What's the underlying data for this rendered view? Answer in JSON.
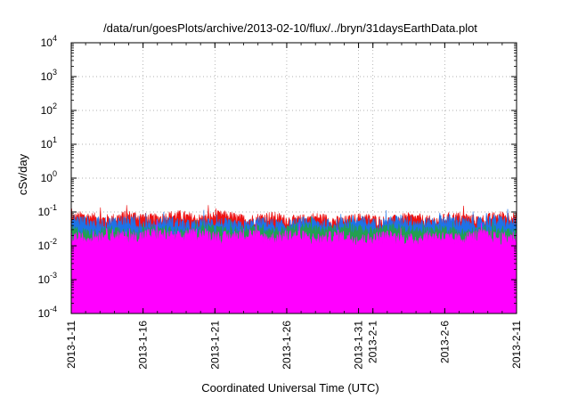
{
  "chart_data": {
    "type": "line",
    "title": "/data/run/goesPlots/archive/2013-02-10/flux/../bryn/31daysEarthData.plot",
    "xlabel": "Coordinated Universal Time (UTC)",
    "ylabel": "cSv/day",
    "y_scale": "log",
    "ylim": [
      0.0001,
      10000
    ],
    "xlim": [
      "2013-01-11",
      "2013-02-11"
    ],
    "grid": true,
    "legend": "none",
    "y_ticks": [
      {
        "base": "10",
        "exp": "-4",
        "value": 0.0001
      },
      {
        "base": "10",
        "exp": "-3",
        "value": 0.001
      },
      {
        "base": "10",
        "exp": "-2",
        "value": 0.01
      },
      {
        "base": "10",
        "exp": "-1",
        "value": 0.1
      },
      {
        "base": "10",
        "exp": "0",
        "value": 1
      },
      {
        "base": "10",
        "exp": "1",
        "value": 10
      },
      {
        "base": "10",
        "exp": "2",
        "value": 100
      },
      {
        "base": "10",
        "exp": "3",
        "value": 1000
      },
      {
        "base": "10",
        "exp": "4",
        "value": 10000
      }
    ],
    "x_ticks": [
      {
        "label": "2013-1-11",
        "date": "2013-01-11"
      },
      {
        "label": "2013-1-16",
        "date": "2013-01-16"
      },
      {
        "label": "2013-1-21",
        "date": "2013-01-21"
      },
      {
        "label": "2013-1-26",
        "date": "2013-01-26"
      },
      {
        "label": "2013-1-31",
        "date": "2013-01-31"
      },
      {
        "label": "2013-2-1",
        "date": "2013-02-01"
      },
      {
        "label": "2013-2-6",
        "date": "2013-02-06"
      },
      {
        "label": "2013-2-11",
        "date": "2013-02-11"
      }
    ],
    "series": [
      {
        "color": "#ee1111",
        "base": 0.062,
        "spread": 0.18
      },
      {
        "color": "#1e73e8",
        "base": 0.045,
        "spread": 0.2
      },
      {
        "color": "#22a050",
        "base": 0.028,
        "spread": 0.16
      },
      {
        "color": "#ff00ff",
        "base": 0.018,
        "spread": 0.2,
        "floor": 0.0045
      }
    ],
    "dips": [
      {
        "date": "2013-01-17 04:00",
        "value": 0.0001
      },
      {
        "date": "2013-01-17 12:00",
        "value": 0.0001
      },
      {
        "date": "2013-01-20 18:00",
        "value": 0.0001
      },
      {
        "date": "2013-01-24 06:00",
        "value": 0.0001
      },
      {
        "date": "2013-01-30 18:00",
        "value": 0.0001
      },
      {
        "date": "2013-02-07 00:00",
        "value": 0.0001
      }
    ]
  }
}
